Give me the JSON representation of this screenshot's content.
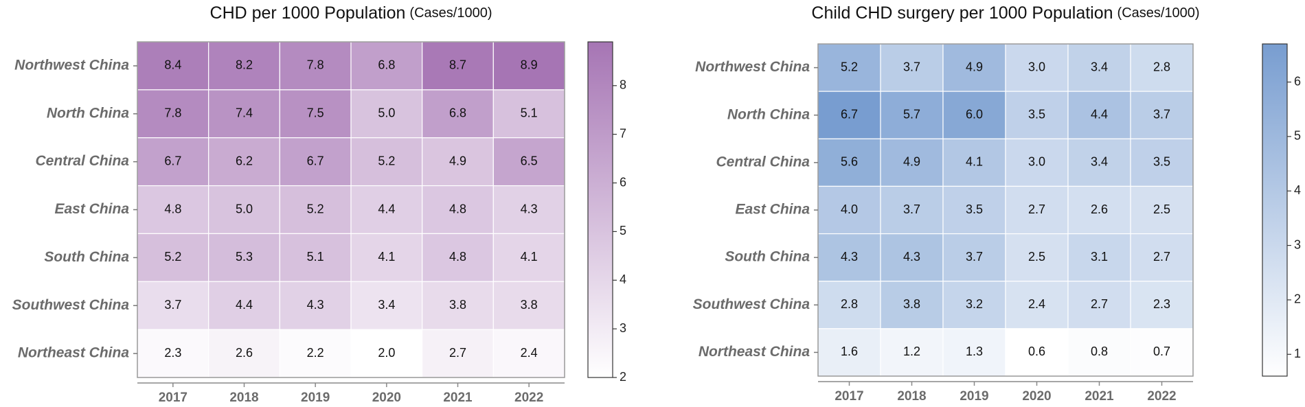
{
  "chart_data": [
    {
      "type": "heatmap",
      "title": "CHD per 1000 Population",
      "title_unit": "(Cases/1000)",
      "categories": [
        "2017",
        "2018",
        "2019",
        "2020",
        "2021",
        "2022"
      ],
      "rows": [
        "Northwest China",
        "North China",
        "Central China",
        "East China",
        "South China",
        "Southwest China",
        "Northeast China"
      ],
      "values": [
        [
          8.4,
          8.2,
          7.8,
          6.8,
          8.7,
          8.9
        ],
        [
          7.8,
          7.4,
          7.5,
          5.0,
          6.8,
          5.1
        ],
        [
          6.7,
          6.2,
          6.7,
          5.2,
          4.9,
          6.5
        ],
        [
          4.8,
          5.0,
          5.2,
          4.4,
          4.8,
          4.3
        ],
        [
          5.2,
          5.3,
          5.1,
          4.1,
          4.8,
          4.1
        ],
        [
          3.7,
          4.4,
          4.3,
          3.4,
          3.8,
          3.8
        ],
        [
          2.3,
          2.6,
          2.2,
          2.0,
          2.7,
          2.4
        ]
      ],
      "value_labels": [
        [
          "8.4",
          "8.2",
          "7.8",
          "6.8",
          "8.7",
          "8.9"
        ],
        [
          "7.8",
          "7.4",
          "7.5",
          "5.0",
          "6.8",
          "5.1"
        ],
        [
          "6.7",
          "6.2",
          "6.7",
          "5.2",
          "4.9",
          "6.5"
        ],
        [
          "4.8",
          "5.0",
          "5.2",
          "4.4",
          "4.8",
          "4.3"
        ],
        [
          "5.2",
          "5.3",
          "5.1",
          "4.1",
          "4.8",
          "4.1"
        ],
        [
          "3.7",
          "4.4",
          "4.3",
          "3.4",
          "3.8",
          "3.8"
        ],
        [
          "2.3",
          "2.6",
          "2.2",
          "2.0",
          "2.7",
          "2.4"
        ]
      ],
      "colorscale": [
        "#ffffff",
        "#a675b4"
      ],
      "clim": [
        2,
        8.9
      ],
      "cticks": [
        2,
        3,
        4,
        5,
        6,
        7,
        8
      ]
    },
    {
      "type": "heatmap",
      "title": "Child CHD surgery per 1000 Population",
      "title_unit": "(Cases/1000)",
      "categories": [
        "2017",
        "2018",
        "2019",
        "2020",
        "2021",
        "2022"
      ],
      "rows": [
        "Northwest China",
        "North China",
        "Central China",
        "East China",
        "South China",
        "Southwest China",
        "Northeast China"
      ],
      "values": [
        [
          5.2,
          3.7,
          4.9,
          3.0,
          3.4,
          2.8
        ],
        [
          6.7,
          5.7,
          6.0,
          3.5,
          4.4,
          3.7
        ],
        [
          5.6,
          4.9,
          4.1,
          3.0,
          3.4,
          3.5
        ],
        [
          4.0,
          3.7,
          3.5,
          2.7,
          2.6,
          2.5
        ],
        [
          4.3,
          4.3,
          3.7,
          2.5,
          3.1,
          2.7
        ],
        [
          2.8,
          3.8,
          3.2,
          2.4,
          2.7,
          2.3
        ],
        [
          1.6,
          1.2,
          1.3,
          0.6,
          0.8,
          0.7
        ]
      ],
      "value_labels": [
        [
          "5.2",
          "3.7",
          "4.9",
          "3.0",
          "3.4",
          "2.8"
        ],
        [
          "6.7",
          "5.7",
          "6.0",
          "3.5",
          "4.4",
          "3.7"
        ],
        [
          "5.6",
          "4.9",
          "4.1",
          "3.0",
          "3.4",
          "3.5"
        ],
        [
          "4.0",
          "3.7",
          "3.5",
          "2.7",
          "2.6",
          "2.5"
        ],
        [
          "4.3",
          "4.3",
          "3.7",
          "2.5",
          "3.1",
          "2.7"
        ],
        [
          "2.8",
          "3.8",
          "3.2",
          "2.4",
          "2.7",
          "2.3"
        ],
        [
          "1.6",
          "1.2",
          "1.3",
          "0.6",
          "0.8",
          "0.7"
        ]
      ],
      "colorscale": [
        "#ffffff",
        "#789dd0"
      ],
      "clim": [
        0.6,
        6.7
      ],
      "cticks": [
        1,
        2,
        3,
        4,
        5,
        6
      ]
    }
  ]
}
